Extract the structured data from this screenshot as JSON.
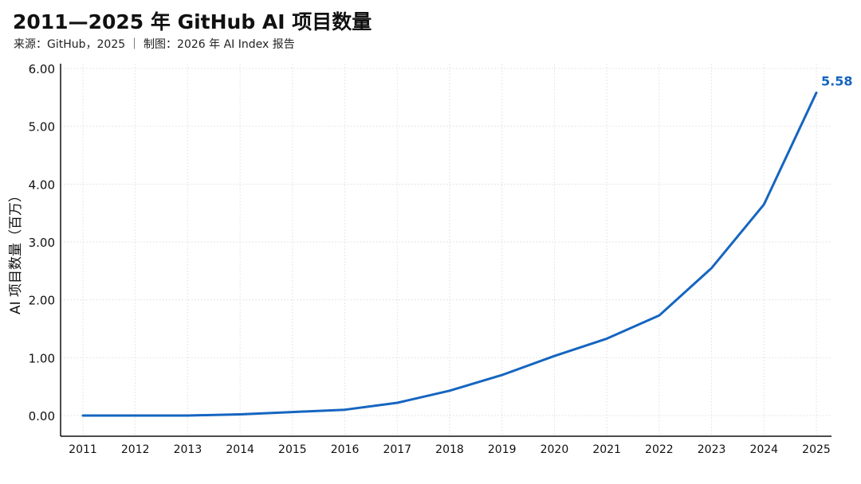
{
  "title": "2011—2025 年 GitHub AI 项目数量",
  "subtitle": "来源：GitHub，2025 ｜ 制图：2026 年 AI Index 报告",
  "colors": {
    "line": "#1565c0",
    "grid": "#e6e6e6",
    "axis": "#111111"
  },
  "chart_data": {
    "type": "line",
    "title": "2011—2025 年 GitHub AI 项目数量",
    "xlabel": "",
    "ylabel": "AI 项目数量（百万）",
    "x": [
      "2011",
      "2012",
      "2013",
      "2014",
      "2015",
      "2016",
      "2017",
      "2018",
      "2019",
      "2020",
      "2021",
      "2022",
      "2023",
      "2024",
      "2025"
    ],
    "series": [
      {
        "values": [
          0.0,
          0.0,
          0.0,
          0.02,
          0.06,
          0.1,
          0.22,
          0.43,
          0.7,
          1.03,
          1.33,
          1.73,
          2.55,
          3.65,
          5.58
        ]
      }
    ],
    "y_ticks": [
      "0.00",
      "1.00",
      "2.00",
      "3.00",
      "4.00",
      "5.00",
      "6.00"
    ],
    "ylim": [
      -0.35,
      6.0
    ],
    "grid": true,
    "data_labels": [
      {
        "index": 14,
        "text": "5.58"
      }
    ]
  }
}
